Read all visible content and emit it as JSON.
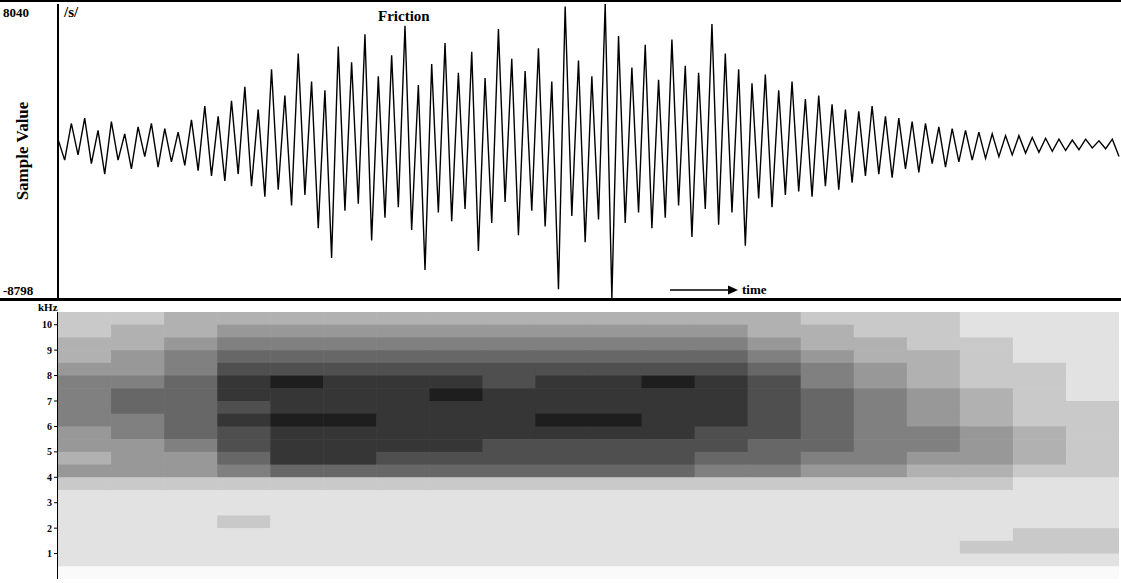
{
  "chart_data": [
    {
      "type": "line",
      "ylabel": "Sample Value",
      "ylim": [
        -8798,
        8040
      ],
      "yticks": [
        -8798,
        8040
      ],
      "tick_labels": "y",
      "color": "#000000",
      "annotations": [
        "/s/",
        "Friction",
        "time"
      ],
      "values": [
        300,
        -900,
        1200,
        -600,
        1500,
        -1100,
        800,
        -1700,
        1300,
        -900,
        600,
        -1400,
        1000,
        -700,
        1200,
        -1300,
        900,
        -1000,
        700,
        -1200,
        1400,
        -1500,
        2200,
        -1800,
        1600,
        -2100,
        2500,
        -1700,
        3300,
        -2400,
        2000,
        -3000,
        4300,
        -2600,
        2800,
        -3500,
        5200,
        -2900,
        3600,
        -4800,
        3100,
        -6500,
        5600,
        -3800,
        4700,
        -3400,
        6300,
        -5500,
        3900,
        -4200,
        5100,
        -3600,
        6800,
        -4900,
        3400,
        -7200,
        4600,
        -3900,
        5800,
        -4400,
        4100,
        -3700,
        5300,
        -6100,
        3800,
        -4500,
        6600,
        -3300,
        4900,
        -5200,
        4200,
        -3800,
        5500,
        -4700,
        3600,
        -8300,
        7900,
        -4100,
        4800,
        -5600,
        3900,
        -4300,
        8040,
        -8798,
        6200,
        -4500,
        4400,
        -3900,
        5700,
        -4800,
        3700,
        -4200,
        6000,
        -3500,
        4500,
        -5300,
        4100,
        -3700,
        6900,
        -4600,
        5200,
        -3900,
        4300,
        -5800,
        3500,
        -3100,
        4000,
        -3600,
        3100,
        -2900,
        3600,
        -2700,
        2600,
        -3000,
        2800,
        -2400,
        2300,
        -2600,
        2000,
        -2200,
        1900,
        -1800,
        2200,
        -1700,
        1600,
        -1900,
        1500,
        -1400,
        1300,
        -1600,
        1200,
        -1100,
        1000,
        -1300,
        900,
        -1000,
        800,
        -900,
        700,
        -800,
        600,
        -700,
        500,
        -600,
        500,
        -500,
        400,
        -450,
        350,
        -400,
        300,
        -350,
        250,
        -300,
        300,
        -200,
        200,
        -250,
        300,
        -700
      ]
    },
    {
      "type": "heatmap",
      "ylabel": "kHz",
      "ylim": [
        0,
        10.5
      ],
      "yticks": [
        1,
        2,
        3,
        4,
        5,
        6,
        7,
        8,
        9,
        10
      ],
      "cells": [
        [
          2,
          2,
          3,
          3,
          3,
          3,
          3,
          3,
          3,
          3,
          3,
          3,
          3,
          3,
          2,
          2,
          2,
          1,
          1,
          1
        ],
        [
          2,
          3,
          3,
          4,
          4,
          4,
          4,
          4,
          4,
          4,
          4,
          4,
          4,
          3,
          3,
          2,
          2,
          1,
          1,
          1
        ],
        [
          3,
          3,
          4,
          5,
          5,
          5,
          5,
          5,
          5,
          5,
          5,
          5,
          5,
          4,
          3,
          3,
          2,
          2,
          1,
          1
        ],
        [
          3,
          4,
          5,
          6,
          6,
          6,
          6,
          6,
          6,
          6,
          6,
          6,
          6,
          5,
          4,
          3,
          3,
          2,
          1,
          1
        ],
        [
          4,
          4,
          5,
          7,
          7,
          7,
          7,
          7,
          7,
          7,
          7,
          7,
          7,
          6,
          5,
          4,
          3,
          2,
          2,
          1
        ],
        [
          5,
          5,
          6,
          8,
          9,
          8,
          8,
          8,
          7,
          8,
          8,
          9,
          8,
          7,
          5,
          4,
          3,
          2,
          2,
          1
        ],
        [
          5,
          6,
          6,
          8,
          8,
          8,
          8,
          9,
          8,
          8,
          8,
          8,
          8,
          7,
          6,
          5,
          4,
          3,
          2,
          1
        ],
        [
          5,
          6,
          6,
          7,
          8,
          8,
          8,
          8,
          8,
          8,
          8,
          8,
          8,
          7,
          6,
          5,
          4,
          3,
          2,
          2
        ],
        [
          5,
          5,
          6,
          8,
          9,
          9,
          8,
          8,
          8,
          9,
          9,
          8,
          8,
          7,
          6,
          5,
          4,
          3,
          2,
          2
        ],
        [
          4,
          5,
          6,
          7,
          8,
          8,
          8,
          8,
          8,
          8,
          8,
          8,
          7,
          7,
          6,
          5,
          5,
          4,
          3,
          2
        ],
        [
          4,
          4,
          5,
          7,
          8,
          8,
          8,
          8,
          7,
          7,
          7,
          7,
          7,
          6,
          6,
          5,
          5,
          4,
          3,
          2
        ],
        [
          3,
          4,
          4,
          6,
          8,
          8,
          7,
          7,
          7,
          7,
          7,
          7,
          6,
          6,
          5,
          5,
          4,
          4,
          3,
          2
        ],
        [
          4,
          4,
          4,
          5,
          6,
          6,
          6,
          6,
          6,
          6,
          6,
          6,
          5,
          5,
          4,
          4,
          3,
          3,
          2,
          2
        ],
        [
          2,
          2,
          2,
          2,
          2,
          2,
          2,
          2,
          2,
          2,
          2,
          2,
          2,
          2,
          2,
          2,
          2,
          2,
          1,
          1
        ],
        [
          1,
          1,
          1,
          1,
          1,
          1,
          1,
          1,
          1,
          1,
          1,
          1,
          1,
          1,
          1,
          1,
          1,
          1,
          1,
          1
        ],
        [
          1,
          1,
          1,
          1,
          1,
          1,
          1,
          1,
          1,
          1,
          1,
          1,
          1,
          1,
          1,
          1,
          1,
          1,
          1,
          1
        ],
        [
          1,
          1,
          1,
          2,
          1,
          1,
          1,
          1,
          1,
          1,
          1,
          1,
          1,
          1,
          1,
          1,
          1,
          1,
          1,
          1
        ],
        [
          1,
          1,
          1,
          1,
          1,
          1,
          1,
          1,
          1,
          1,
          1,
          1,
          1,
          1,
          1,
          1,
          1,
          1,
          2,
          2
        ],
        [
          1,
          1,
          1,
          1,
          1,
          1,
          1,
          1,
          1,
          1,
          1,
          1,
          1,
          1,
          1,
          1,
          1,
          2,
          2,
          2
        ],
        [
          1,
          1,
          1,
          1,
          1,
          1,
          1,
          1,
          1,
          1,
          1,
          1,
          1,
          1,
          1,
          1,
          1,
          1,
          1,
          1
        ],
        [
          0,
          0,
          0,
          0,
          0,
          0,
          0,
          0,
          0,
          0,
          0,
          0,
          0,
          0,
          0,
          0,
          0,
          0,
          0,
          0
        ]
      ]
    }
  ]
}
